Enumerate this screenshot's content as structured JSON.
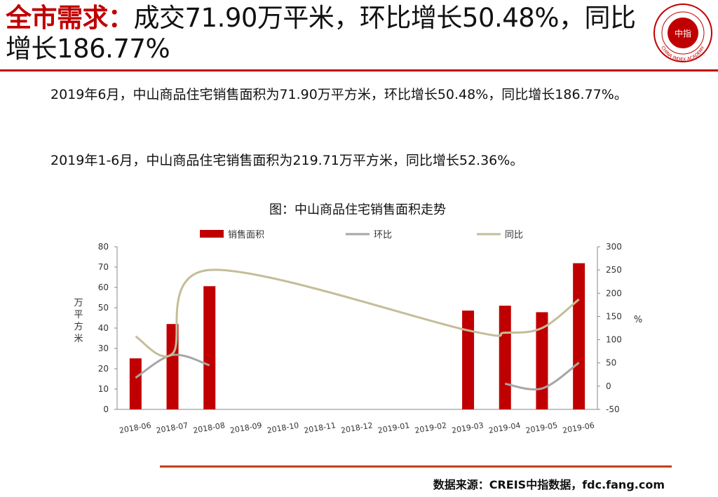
{
  "header": {
    "title_highlight": "全市需求：",
    "title_rest": "成交71.90万平米，环比增长50.48%，同比增长186.77%",
    "logo_text": "CHINA INDEX ACADEMY",
    "logo_center": "中指"
  },
  "body": {
    "paragraph1": "2019年6月，中山商品住宅销售面积为71.90万平方米，环比增长50.48%，同比增长186.77%。",
    "paragraph2": "2019年1-6月，中山商品住宅销售面积为219.71万平方米，同比增长52.36%。"
  },
  "chart_data": {
    "type": "bar",
    "title": "图：中山商品住宅销售面积走势",
    "categories": [
      "2018-06",
      "2018-07",
      "2018-08",
      "2018-09",
      "2018-10",
      "2018-11",
      "2018-12",
      "2019-01",
      "2019-02",
      "2019-03",
      "2019-04",
      "2019-05",
      "2019-06"
    ],
    "series": [
      {
        "name": "销售面积",
        "type": "bar",
        "axis": "left",
        "color": "#c00000",
        "values": [
          25.1,
          42,
          60.6,
          null,
          null,
          null,
          null,
          null,
          null,
          48.6,
          51,
          47.8,
          71.9
        ]
      },
      {
        "name": "环比",
        "type": "line",
        "axis": "right",
        "color": "#a6a6a6",
        "values": [
          18,
          67,
          45,
          null,
          null,
          null,
          null,
          null,
          null,
          null,
          5,
          -5,
          50.48
        ]
      },
      {
        "name": "同比",
        "type": "line",
        "axis": "right",
        "color": "#c4bd97",
        "values": [
          107,
          70,
          250,
          null,
          null,
          null,
          null,
          null,
          null,
          120,
          115,
          125,
          186.77
        ]
      }
    ],
    "ylabel_left": "万平方米",
    "ylabel_right": "%",
    "ylim_left": [
      0,
      80
    ],
    "yticks_left": [
      0,
      10,
      20,
      30,
      40,
      50,
      60,
      70,
      80
    ],
    "ylim_right": [
      -50,
      300
    ],
    "yticks_right": [
      -50,
      0,
      50,
      100,
      150,
      200,
      250,
      300
    ],
    "grid": false,
    "legend": "top"
  },
  "footer": {
    "source": "数据来源：CREIS中指数据，fdc.fang.com"
  }
}
